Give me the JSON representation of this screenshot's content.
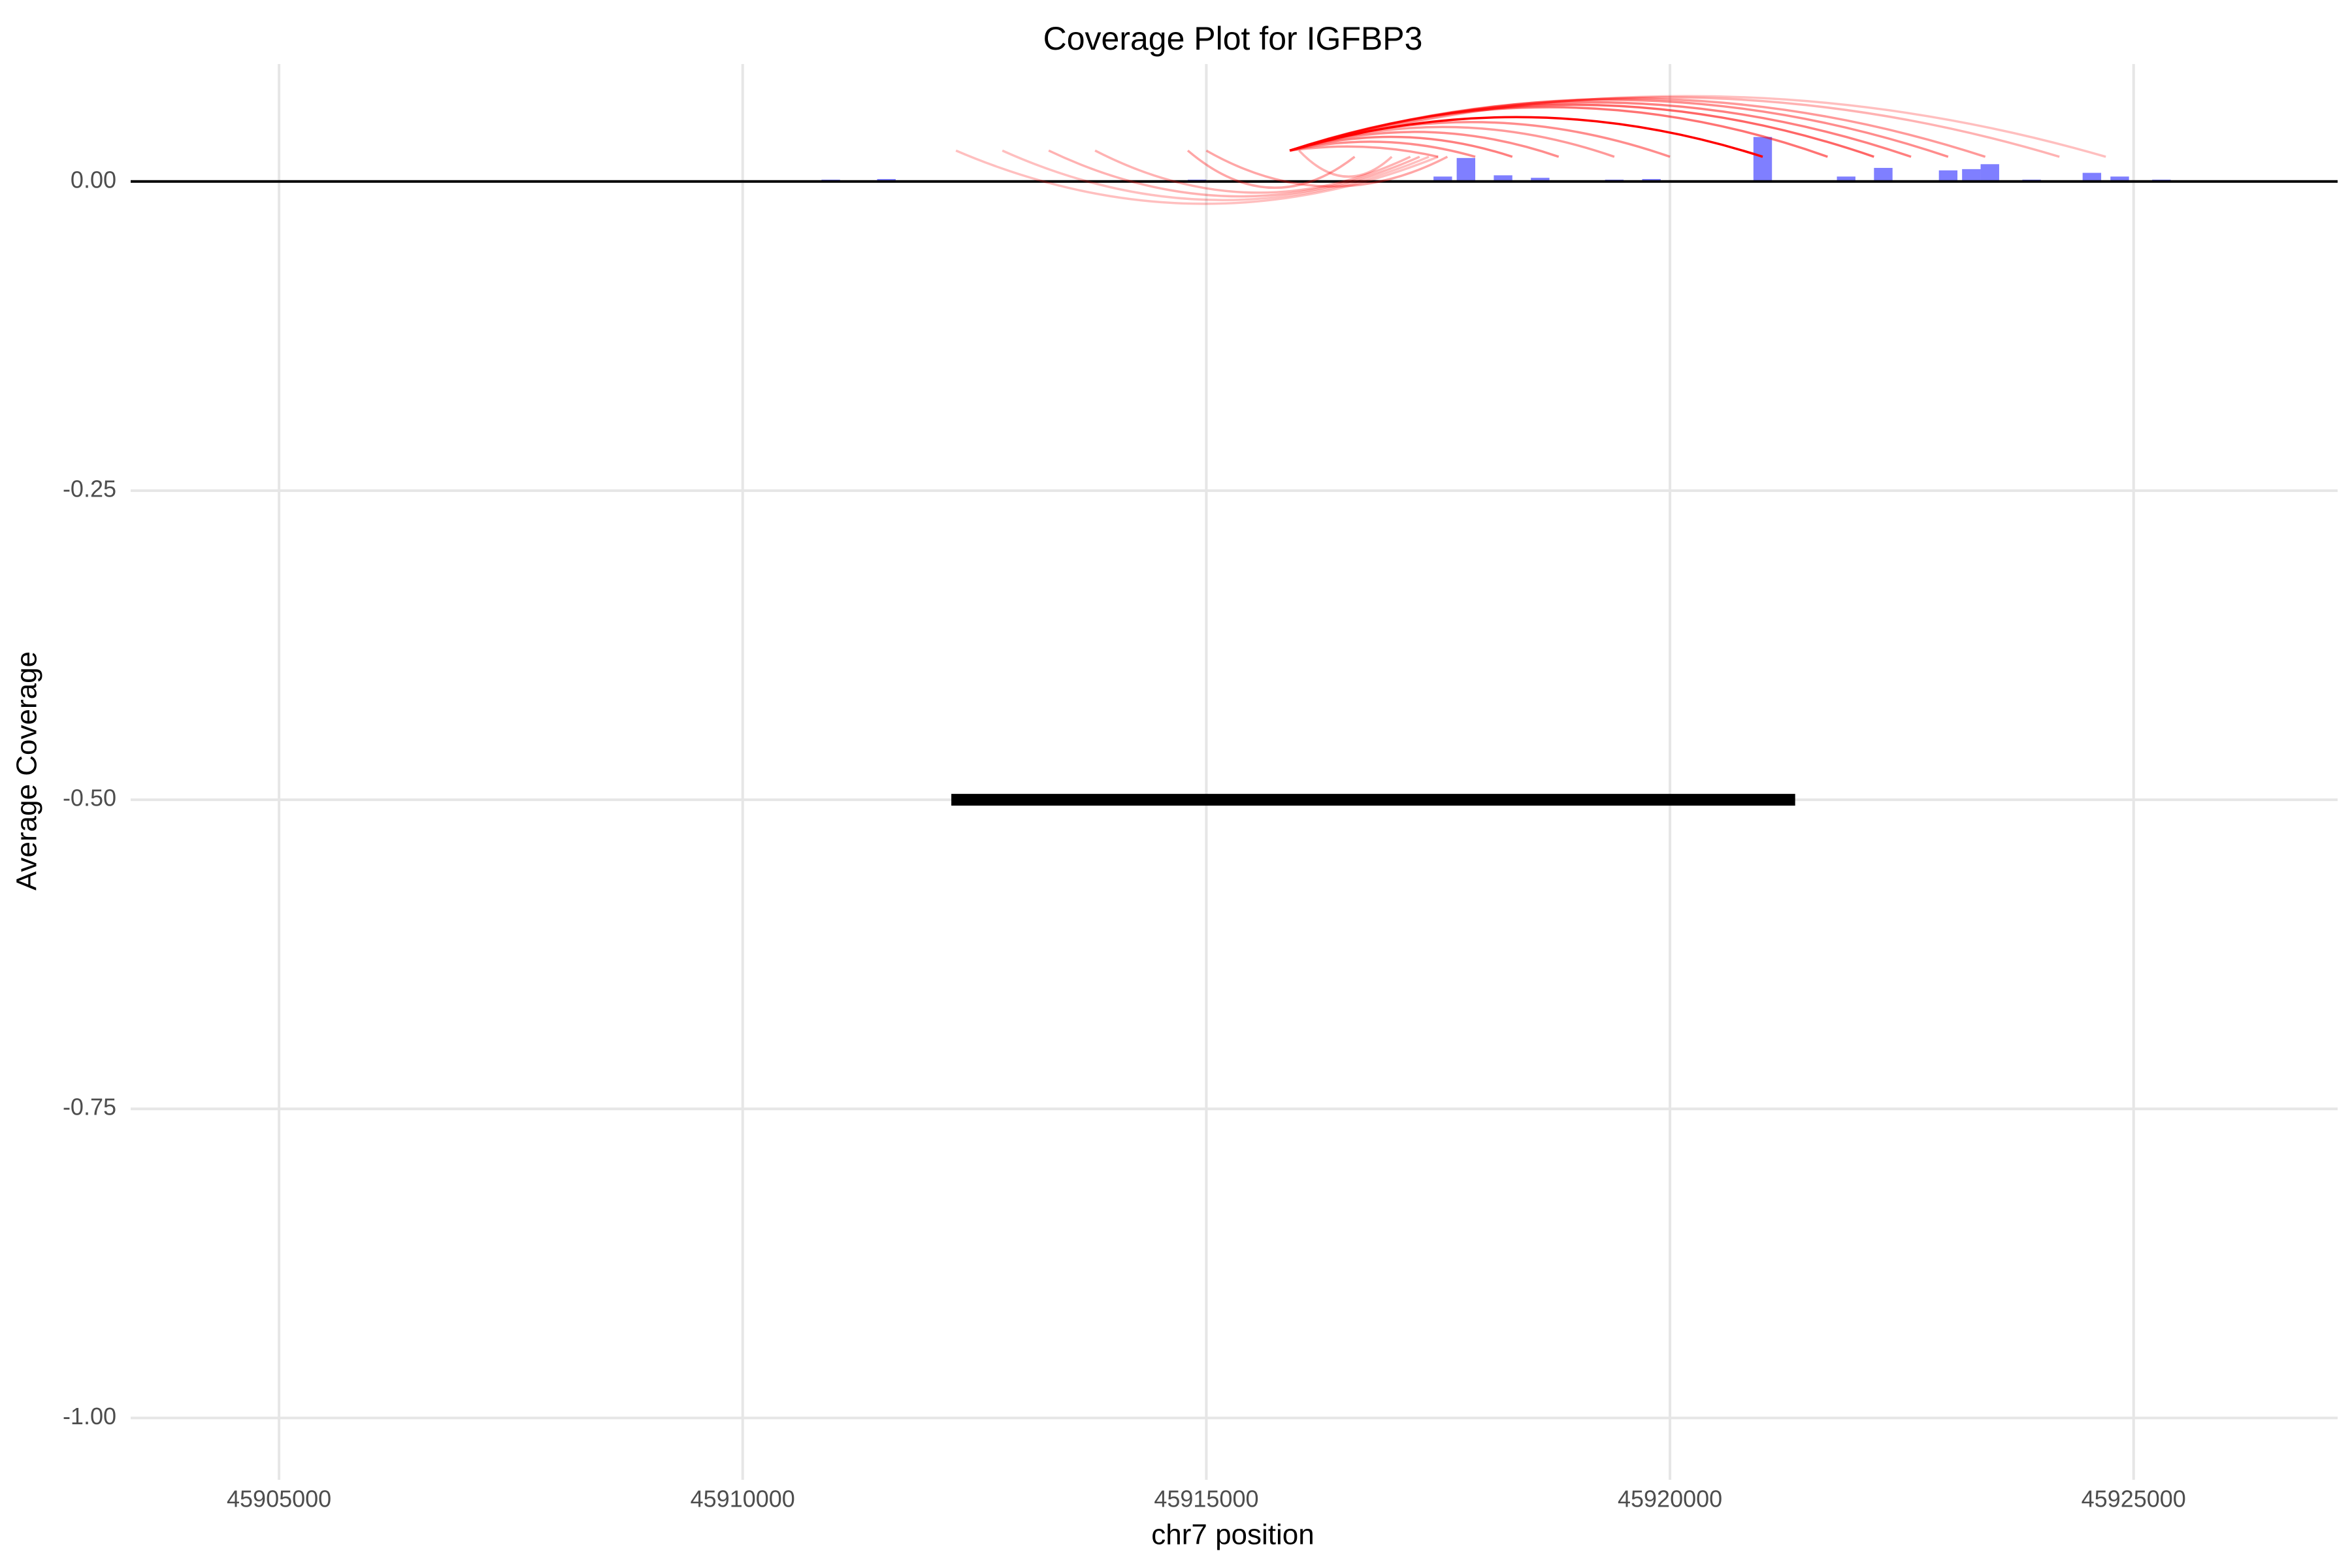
{
  "chart_data": {
    "type": "bar",
    "title": "Coverage Plot for IGFBP3",
    "xlabel": "chr7 position",
    "ylabel": "Average Coverage",
    "xlim": [
      45903400,
      45927200
    ],
    "ylim": [
      -1.05,
      0.095
    ],
    "x_ticks": [
      45905000,
      45910000,
      45915000,
      45920000,
      45925000
    ],
    "x_tick_labels": [
      "45905000",
      "45910000",
      "45915000",
      "45920000",
      "45925000"
    ],
    "y_ticks": [
      -1.0,
      -0.75,
      -0.5,
      -0.25,
      0.0
    ],
    "y_tick_labels": [
      "-1.00",
      "-0.75",
      "-0.50",
      "-0.25",
      "0.00"
    ],
    "grid": true,
    "bar_color": "#0000ff",
    "arc_color": "#ff0000",
    "gene_color": "#000000",
    "coverage_bars": [
      {
        "x": 45910950,
        "y": 0.0015
      },
      {
        "x": 45911550,
        "y": 0.002
      },
      {
        "x": 45914900,
        "y": 0.0015
      },
      {
        "x": 45917550,
        "y": 0.004
      },
      {
        "x": 45917800,
        "y": 0.019
      },
      {
        "x": 45918200,
        "y": 0.005
      },
      {
        "x": 45918600,
        "y": 0.003
      },
      {
        "x": 45919400,
        "y": 0.0015
      },
      {
        "x": 45919800,
        "y": 0.002
      },
      {
        "x": 45921000,
        "y": 0.036
      },
      {
        "x": 45921900,
        "y": 0.004
      },
      {
        "x": 45922300,
        "y": 0.011
      },
      {
        "x": 45923000,
        "y": 0.009
      },
      {
        "x": 45923250,
        "y": 0.01
      },
      {
        "x": 45923450,
        "y": 0.014
      },
      {
        "x": 45923900,
        "y": 0.0015
      },
      {
        "x": 45924550,
        "y": 0.007
      },
      {
        "x": 45924850,
        "y": 0.004
      },
      {
        "x": 45925300,
        "y": 0.0015
      }
    ],
    "junction_arcs": [
      {
        "start": 45912300,
        "end": 45917500,
        "peak": -0.018,
        "strength": 0.25
      },
      {
        "start": 45912800,
        "end": 45917400,
        "peak": -0.015,
        "strength": 0.25
      },
      {
        "start": 45913300,
        "end": 45917300,
        "peak": -0.012,
        "strength": 0.3
      },
      {
        "start": 45913800,
        "end": 45917200,
        "peak": -0.009,
        "strength": 0.3
      },
      {
        "start": 45914800,
        "end": 45916600,
        "peak": -0.005,
        "strength": 0.35
      },
      {
        "start": 45915000,
        "end": 45917600,
        "peak": -0.004,
        "strength": 0.35
      },
      {
        "start": 45916000,
        "end": 45917000,
        "peak": 0.004,
        "strength": 0.3
      },
      {
        "start": 45915900,
        "end": 45924700,
        "peak": 0.069,
        "strength": 0.25
      },
      {
        "start": 45915900,
        "end": 45924200,
        "peak": 0.068,
        "strength": 0.3
      },
      {
        "start": 45915900,
        "end": 45923400,
        "peak": 0.067,
        "strength": 0.4
      },
      {
        "start": 45915900,
        "end": 45923000,
        "peak": 0.066,
        "strength": 0.45
      },
      {
        "start": 45915900,
        "end": 45922600,
        "peak": 0.064,
        "strength": 0.5
      },
      {
        "start": 45915900,
        "end": 45922200,
        "peak": 0.062,
        "strength": 0.6
      },
      {
        "start": 45915900,
        "end": 45921700,
        "peak": 0.06,
        "strength": 0.55
      },
      {
        "start": 45915900,
        "end": 45921000,
        "peak": 0.052,
        "strength": 1.0
      },
      {
        "start": 45915900,
        "end": 45920000,
        "peak": 0.048,
        "strength": 0.45
      },
      {
        "start": 45915900,
        "end": 45919400,
        "peak": 0.044,
        "strength": 0.4
      },
      {
        "start": 45915900,
        "end": 45918800,
        "peak": 0.04,
        "strength": 0.45
      },
      {
        "start": 45915900,
        "end": 45918300,
        "peak": 0.036,
        "strength": 0.5
      },
      {
        "start": 45915900,
        "end": 45917900,
        "peak": 0.032,
        "strength": 0.45
      },
      {
        "start": 45915900,
        "end": 45917500,
        "peak": 0.028,
        "strength": 0.4
      }
    ],
    "gene_segment": {
      "start": 45912250,
      "end": 45921350,
      "y": -0.5
    }
  }
}
